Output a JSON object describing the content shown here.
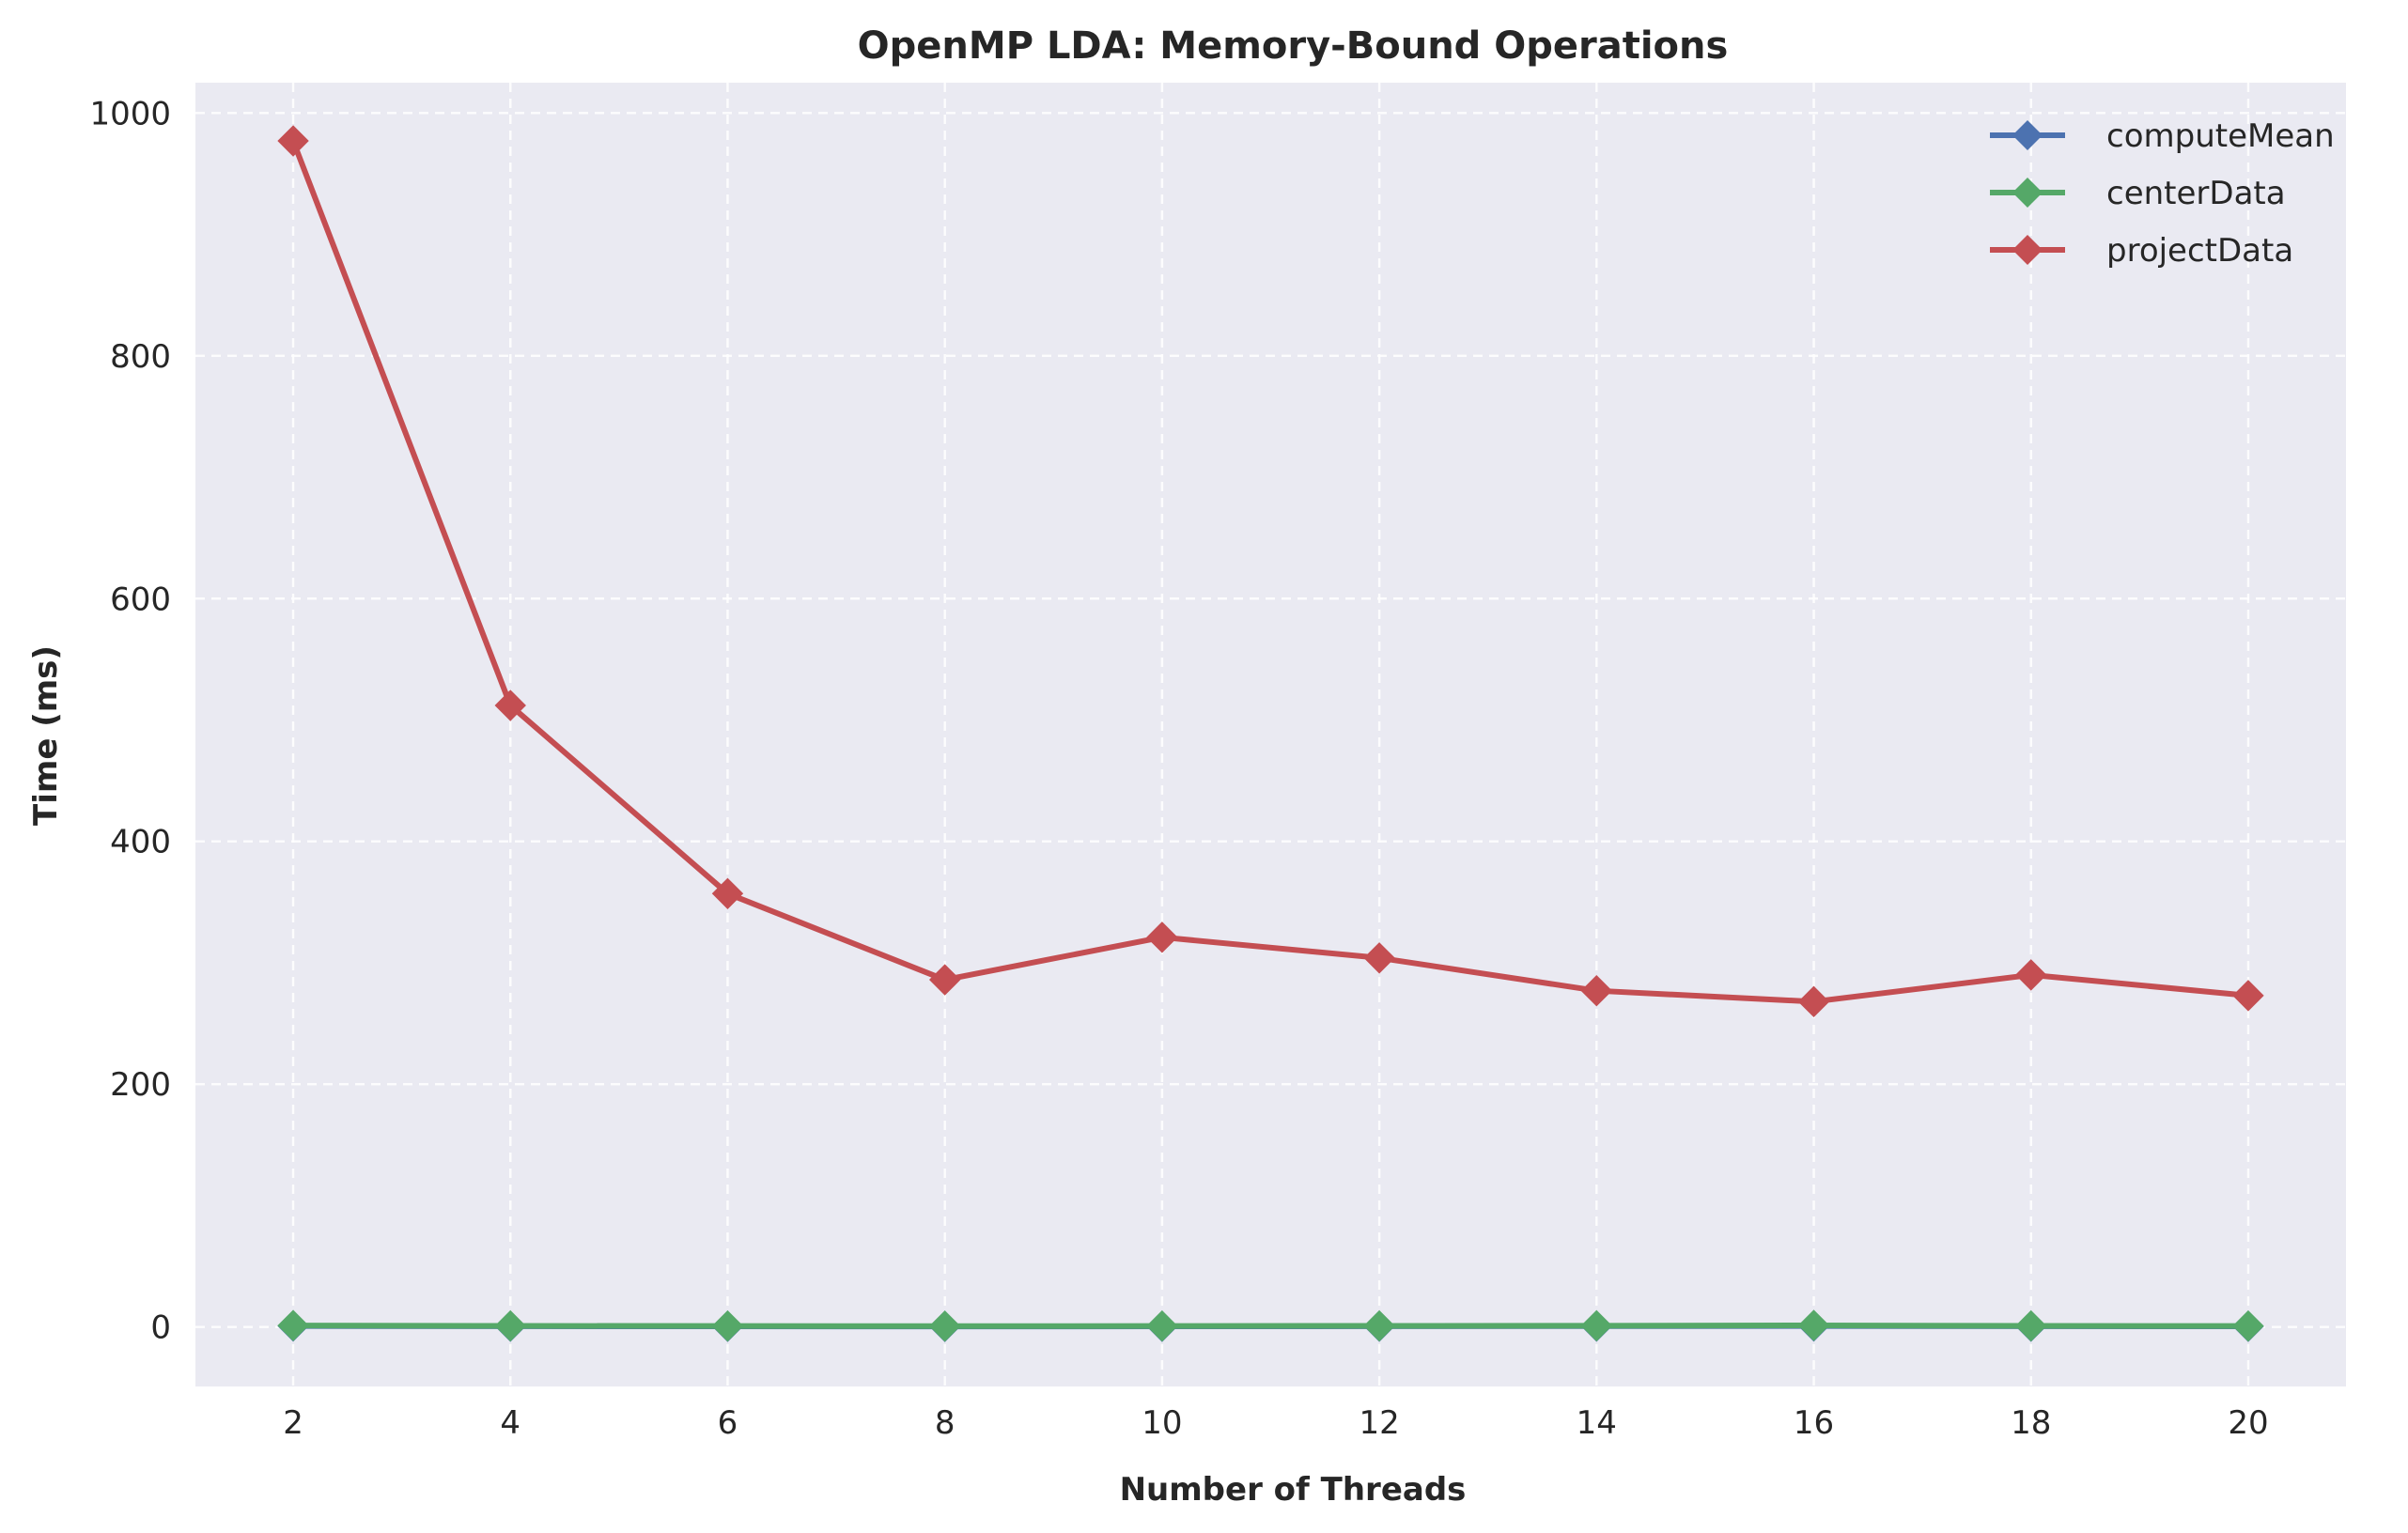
{
  "chart_data": {
    "type": "line",
    "title": "OpenMP LDA: Memory-Bound Operations",
    "xlabel": "Number of Threads",
    "ylabel": "Time (ms)",
    "x": [
      2,
      4,
      6,
      8,
      10,
      12,
      14,
      16,
      18,
      20
    ],
    "xticks": [
      2,
      4,
      6,
      8,
      10,
      12,
      14,
      16,
      18,
      20
    ],
    "yticks": [
      0,
      200,
      400,
      600,
      800,
      1000
    ],
    "xlim": [
      1.1,
      20.9
    ],
    "ylim": [
      -49,
      1025
    ],
    "grid": true,
    "legend_position": "top-right",
    "background": "#eaeaf2",
    "series": [
      {
        "name": "computeMean",
        "color": "#4c72b0",
        "marker": "diamond",
        "values": [
          0.8,
          0.6,
          0.5,
          0.4,
          0.5,
          0.6,
          0.7,
          0.8,
          0.6,
          0.5
        ]
      },
      {
        "name": "centerData",
        "color": "#55a868",
        "marker": "diamond",
        "values": [
          1.2,
          0.9,
          0.8,
          0.7,
          0.8,
          0.9,
          1.0,
          1.3,
          0.9,
          0.8
        ]
      },
      {
        "name": "projectData",
        "color": "#c44e52",
        "marker": "diamond",
        "values": [
          977,
          512,
          357,
          286,
          321,
          304,
          277,
          268,
          290,
          273
        ]
      }
    ]
  }
}
